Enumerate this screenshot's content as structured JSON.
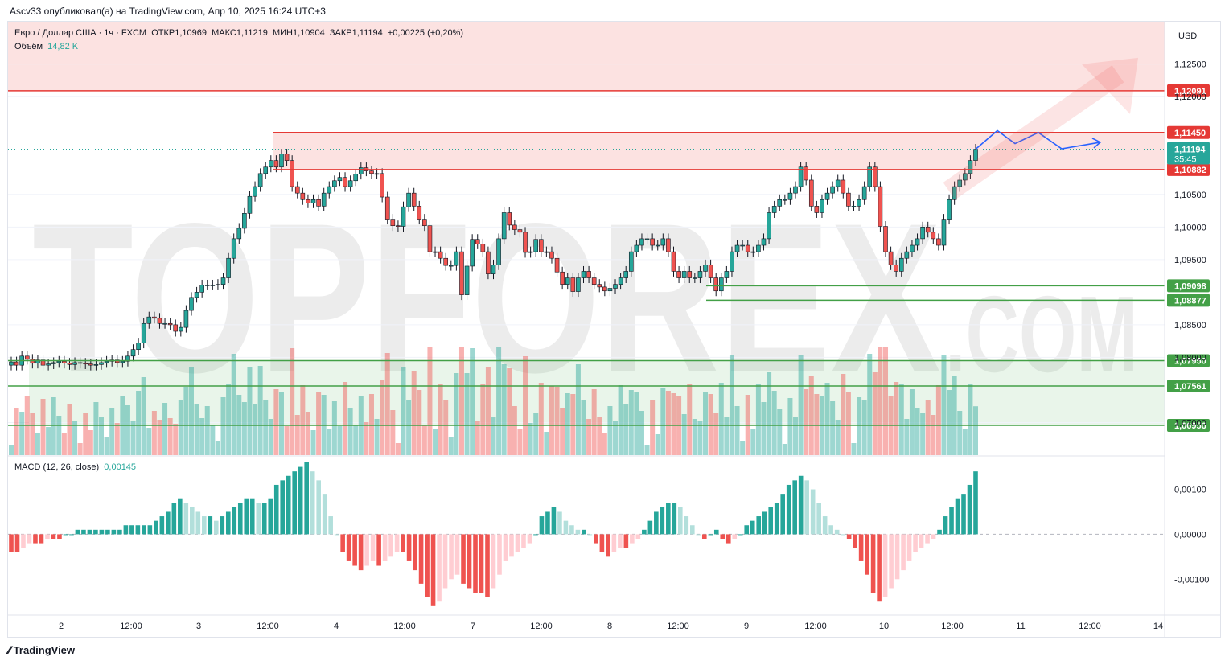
{
  "header": {
    "published_by": "Ascv33 опубликовал(а) на TradingView.com, Апр 10, 2025 16:24 UTC+3"
  },
  "legend": {
    "symbol": "Евро / Доллар США · 1ч · FXCM",
    "open_label": "ОТКР",
    "open": "1,10969",
    "high_label": "МАКС",
    "high": "1,11219",
    "low_label": "МИН",
    "low": "1,10904",
    "close_label": "ЗАКР",
    "close": "1,11194",
    "change": "+0,00225 (+0,20%)",
    "volume_label": "Объём",
    "volume": "14,82 K",
    "macd_label": "MACD (12, 26, close)",
    "macd_value": "0,00145"
  },
  "footer": {
    "brand": "TradingView"
  },
  "watermark": {
    "text": "TOPFOREX",
    "suffix": ".COM"
  },
  "colors": {
    "up": "#26a69a",
    "down": "#ef5350",
    "up_light": "#b2dfdb",
    "down_light": "#ffcdd2",
    "resistance": "#e53935",
    "support": "#43a047",
    "path": "#2962ff",
    "watermark": "#e0e0e0"
  },
  "chart_data": {
    "type": "candlestick",
    "currency": "USD",
    "price_axis": {
      "min": 1.065,
      "max": 1.1315,
      "ticks": [
        "1,12500",
        "1,12000",
        "1,10500",
        "1,10000",
        "1,09500",
        "1,08500",
        "1,08000",
        "1,07000"
      ]
    },
    "x_ticks": [
      "2",
      "12:00",
      "3",
      "12:00",
      "4",
      "12:00",
      "7",
      "12:00",
      "8",
      "12:00",
      "9",
      "12:00",
      "10",
      "12:00",
      "11",
      "12:00",
      "14"
    ],
    "levels": [
      {
        "label": "1,12091",
        "value": 1.12091,
        "kind": "resistance"
      },
      {
        "label": "1,11450",
        "value": 1.1145,
        "kind": "resistance"
      },
      {
        "label": "1,10882",
        "value": 1.10882,
        "kind": "resistance"
      },
      {
        "label": "1,09098",
        "value": 1.09098,
        "kind": "support"
      },
      {
        "label": "1,08877",
        "value": 1.08877,
        "kind": "support"
      },
      {
        "label": "1,07950",
        "value": 1.0795,
        "kind": "support"
      },
      {
        "label": "1,07561",
        "value": 1.07561,
        "kind": "support"
      },
      {
        "label": "1,06956",
        "value": 1.06956,
        "kind": "support"
      }
    ],
    "last_price": {
      "label": "1,11194",
      "value": 1.11194,
      "countdown": "35:45"
    },
    "zones": [
      {
        "from": 1.12091,
        "to": 1.1315,
        "kind": "resistance"
      },
      {
        "from": 1.10882,
        "to": 1.1145,
        "kind": "resistance"
      },
      {
        "from": 1.06956,
        "to": 1.0795,
        "kind": "support"
      }
    ],
    "closes": [
      1.0793,
      1.0788,
      1.0802,
      1.0797,
      1.0791,
      1.0796,
      1.0788,
      1.079,
      1.0792,
      1.0794,
      1.0791,
      1.0789,
      1.0792,
      1.0791,
      1.079,
      1.0788,
      1.0789,
      1.0792,
      1.0794,
      1.0796,
      1.0792,
      1.0794,
      1.0802,
      1.0812,
      1.0822,
      1.0852,
      1.0862,
      1.086,
      1.0852,
      1.0852,
      1.085,
      1.084,
      1.0846,
      1.0872,
      1.0892,
      1.09,
      1.0911,
      1.0911,
      1.0911,
      1.0912,
      1.0922,
      1.0952,
      1.0982,
      1.0998,
      1.1021,
      1.1047,
      1.1062,
      1.1082,
      1.1092,
      1.1102,
      1.1092,
      1.1112,
      1.1102,
      1.1062,
      1.1052,
      1.1042,
      1.1037,
      1.1042,
      1.1032,
      1.1052,
      1.1062,
      1.1071,
      1.1076,
      1.1062,
      1.1071,
      1.1081,
      1.1091,
      1.1086,
      1.1082,
      1.1082,
      1.1046,
      1.1012,
      1.1002,
      1.1001,
      1.1031,
      1.1052,
      1.1032,
      1.1012,
      1.1002,
      1.0962,
      1.0962,
      1.0952,
      1.0941,
      1.0941,
      1.0962,
      1.0896,
      1.094,
      1.0981,
      1.0974,
      1.0962,
      1.0928,
      1.0942,
      1.0982,
      1.1022,
      1.1003,
      1.0996,
      1.0992,
      1.0961,
      1.0962,
      1.0981,
      1.0962,
      1.0962,
      1.0952,
      1.0931,
      1.0912,
      1.0922,
      1.0901,
      1.0922,
      1.0932,
      1.0922,
      1.0912,
      1.0908,
      1.0902,
      1.0906,
      1.0912,
      1.0922,
      1.0932,
      1.0962,
      1.0972,
      1.0982,
      1.0982,
      1.0972,
      1.0972,
      1.0982,
      1.0962,
      1.0932,
      1.0922,
      1.0932,
      1.0922,
      1.0922,
      1.0932,
      1.0942,
      1.0922,
      1.0902,
      1.0922,
      1.0932,
      1.0962,
      1.0972,
      1.0972,
      1.0962,
      1.0962,
      1.0972,
      1.0982,
      1.1022,
      1.1032,
      1.1042,
      1.1042,
      1.1052,
      1.1062,
      1.1092,
      1.1072,
      1.1032,
      1.1022,
      1.1042,
      1.1052,
      1.1062,
      1.1072,
      1.1052,
      1.1032,
      1.1032,
      1.1042,
      1.1062,
      1.1092,
      1.1062,
      1.1001,
      1.0962,
      1.0942,
      1.0932,
      1.0952,
      1.0962,
      1.0972,
      1.0982,
      1.1,
      1.0992,
      1.0982,
      1.0972,
      1.1012,
      1.1042,
      1.1062,
      1.1072,
      1.1082,
      1.1102,
      1.11194
    ],
    "future_path_prices": [
      1.11194,
      1.1148,
      1.1128,
      1.1145,
      1.112,
      1.113
    ],
    "arrow_prices": [
      1.1055,
      1.1235
    ],
    "macd_axis": {
      "min": -0.0018,
      "max": 0.0016,
      "ticks": [
        "0,00100",
        "0,00000",
        "-0,00100"
      ]
    },
    "macd_hist": [
      -0.0004,
      -0.0004,
      -0.0003,
      -0.0002,
      -0.0002,
      -0.0002,
      -0.0001,
      -0.0001,
      -0.0001,
      0.0,
      0.0,
      0.0001,
      0.0001,
      0.0001,
      0.0001,
      0.0001,
      0.0001,
      0.0001,
      0.0001,
      0.0002,
      0.0002,
      0.0002,
      0.0002,
      0.0002,
      0.0003,
      0.0004,
      0.0005,
      0.0007,
      0.0008,
      0.0007,
      0.0006,
      0.0005,
      0.0004,
      0.0004,
      0.0003,
      0.0004,
      0.0005,
      0.0006,
      0.0007,
      0.0008,
      0.0008,
      0.0007,
      0.0007,
      0.0008,
      0.0011,
      0.0012,
      0.0013,
      0.0014,
      0.0015,
      0.0016,
      0.0014,
      0.0012,
      0.0009,
      0.0004,
      0.0,
      -0.0004,
      -0.0006,
      -0.0007,
      -0.0008,
      -0.0007,
      -0.0006,
      -0.0007,
      -0.0006,
      -0.0005,
      -0.0004,
      -0.0004,
      -0.0006,
      -0.0008,
      -0.0011,
      -0.0014,
      -0.0016,
      -0.0015,
      -0.0012,
      -0.001,
      -0.0009,
      -0.0011,
      -0.0012,
      -0.0013,
      -0.0013,
      -0.0014,
      -0.0012,
      -0.0009,
      -0.0006,
      -0.0005,
      -0.0004,
      -0.0003,
      -0.0002,
      0.0,
      0.0004,
      0.0005,
      0.0006,
      0.0005,
      0.0003,
      0.0002,
      0.0001,
      0.0001,
      0.0,
      -0.0002,
      -0.0004,
      -0.0005,
      -0.0004,
      -0.0003,
      -0.0003,
      -0.0002,
      -0.0001,
      0.0001,
      0.0003,
      0.0005,
      0.0006,
      0.0007,
      0.0007,
      0.0006,
      0.0004,
      0.0002,
      0.0,
      -0.0001,
      0.0,
      0.0001,
      -0.0001,
      -0.0002,
      -0.0001,
      0.0,
      0.0002,
      0.0003,
      0.0004,
      0.0005,
      0.0006,
      0.0007,
      0.0009,
      0.0011,
      0.0012,
      0.0013,
      0.0012,
      0.001,
      0.0007,
      0.0004,
      0.0002,
      0.0001,
      0.0,
      -0.0001,
      -0.0003,
      -0.0006,
      -0.0009,
      -0.0013,
      -0.0015,
      -0.0014,
      -0.0012,
      -0.001,
      -0.0008,
      -0.0006,
      -0.0004,
      -0.0003,
      -0.0002,
      -0.0001,
      0.0001,
      0.0004,
      0.0006,
      0.0008,
      0.0009,
      0.0011,
      0.0014
    ]
  }
}
